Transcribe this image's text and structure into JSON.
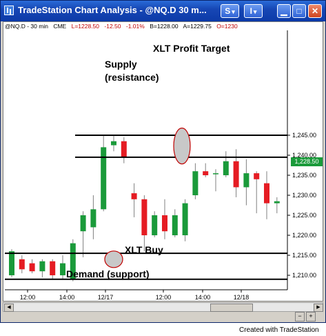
{
  "window": {
    "title": "TradeStation Chart Analysis - @NQ.D  30 m...",
    "buttons": {
      "s": "S",
      "i": "I"
    }
  },
  "status_bar": {
    "symbol": "@NQ.D - 30 min",
    "exchange": "CME",
    "last": "L=1228.50",
    "change": "-12.50",
    "pct": "-1.01%",
    "bid": "B=1228.00",
    "ask": "A=1229.75",
    "open": "O=1230"
  },
  "annotations": {
    "profit_target": "XLT Profit Target",
    "supply_1": "Supply",
    "supply_2": "(resistance)",
    "buy": "XLT Buy",
    "demand": "Demand (support)"
  },
  "price_tag": "1,228.50",
  "footer": "Created with TradeStation",
  "colors": {
    "up": "#1a9a3a",
    "down": "#e51c23",
    "price_tag": "#1a9a3a"
  },
  "chart_data": {
    "type": "candlestick",
    "y_ticks": [
      "1,210.00",
      "1,215.00",
      "1,220.00",
      "1,225.00",
      "1,230.00",
      "1,235.00",
      "1,240.00",
      "1,245.00"
    ],
    "y_values": [
      1210,
      1215,
      1220,
      1225,
      1230,
      1235,
      1240,
      1245
    ],
    "x_ticks": [
      "12:00",
      "14:00",
      "12/17",
      "12:00",
      "14:00",
      "12/18"
    ],
    "ylim": [
      1208,
      1249
    ],
    "candles": [
      {
        "o": 1210.0,
        "h": 1216.5,
        "l": 1209.5,
        "c": 1216.0
      },
      {
        "o": 1214.0,
        "h": 1215.0,
        "l": 1210.5,
        "c": 1211.5
      },
      {
        "o": 1213.0,
        "h": 1214.0,
        "l": 1210.5,
        "c": 1211.0
      },
      {
        "o": 1211.0,
        "h": 1214.0,
        "l": 1209.5,
        "c": 1213.5
      },
      {
        "o": 1213.5,
        "h": 1214.0,
        "l": 1209.0,
        "c": 1210.0
      },
      {
        "o": 1210.0,
        "h": 1215.0,
        "l": 1209.0,
        "c": 1213.0
      },
      {
        "o": 1209.0,
        "h": 1219.0,
        "l": 1208.5,
        "c": 1218.0
      },
      {
        "o": 1221.0,
        "h": 1226.0,
        "l": 1214.5,
        "c": 1225.0
      },
      {
        "o": 1222.0,
        "h": 1230.0,
        "l": 1219.0,
        "c": 1226.5
      },
      {
        "o": 1226.5,
        "h": 1245.0,
        "l": 1226.0,
        "c": 1242.0
      },
      {
        "o": 1242.5,
        "h": 1245.0,
        "l": 1241.0,
        "c": 1243.5
      },
      {
        "o": 1243.5,
        "h": 1244.5,
        "l": 1238.0,
        "c": 1239.5
      },
      {
        "o": 1230.5,
        "h": 1233.0,
        "l": 1224.5,
        "c": 1229.0
      },
      {
        "o": 1229.0,
        "h": 1230.0,
        "l": 1216.0,
        "c": 1220.0
      },
      {
        "o": 1220.0,
        "h": 1226.0,
        "l": 1219.5,
        "c": 1225.0
      },
      {
        "o": 1225.0,
        "h": 1229.0,
        "l": 1219.0,
        "c": 1221.0
      },
      {
        "o": 1220.0,
        "h": 1226.5,
        "l": 1219.5,
        "c": 1225.0
      },
      {
        "o": 1220.0,
        "h": 1229.0,
        "l": 1218.5,
        "c": 1228.0
      },
      {
        "o": 1230.0,
        "h": 1238.0,
        "l": 1229.0,
        "c": 1236.0
      },
      {
        "o": 1236.0,
        "h": 1238.0,
        "l": 1234.5,
        "c": 1235.0
      },
      {
        "o": 1235.5,
        "h": 1236.5,
        "l": 1231.0,
        "c": 1235.5
      },
      {
        "o": 1235.0,
        "h": 1241.0,
        "l": 1234.5,
        "c": 1238.5
      },
      {
        "o": 1238.5,
        "h": 1241.5,
        "l": 1229.5,
        "c": 1232.0
      },
      {
        "o": 1232.0,
        "h": 1239.0,
        "l": 1227.5,
        "c": 1235.5
      },
      {
        "o": 1235.5,
        "h": 1236.0,
        "l": 1225.5,
        "c": 1234.0
      },
      {
        "o": 1233.0,
        "h": 1236.0,
        "l": 1224.0,
        "c": 1228.0
      },
      {
        "o": 1228.0,
        "h": 1229.5,
        "l": 1225.5,
        "c": 1228.5
      }
    ],
    "levels": [
      {
        "name": "profit-target",
        "value": 1245.0
      },
      {
        "name": "supply",
        "value": 1239.5
      },
      {
        "name": "demand-top",
        "value": 1215.5
      },
      {
        "name": "demand-bottom",
        "value": 1209.0
      }
    ]
  }
}
